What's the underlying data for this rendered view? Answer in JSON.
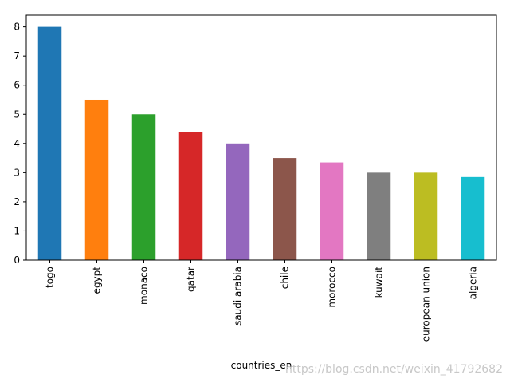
{
  "chart_data": {
    "type": "bar",
    "categories": [
      "togo",
      "egypt",
      "monaco",
      "qatar",
      "saudi arabia",
      "chile",
      "morocco",
      "kuwait",
      "european union",
      "algeria"
    ],
    "values": [
      8,
      5.5,
      5,
      4.4,
      4,
      3.5,
      3.35,
      3,
      3,
      2.85
    ],
    "colors": [
      "#1f77b4",
      "#ff7f0e",
      "#2ca02c",
      "#d62728",
      "#9467bd",
      "#8c564b",
      "#e377c2",
      "#7f7f7f",
      "#bcbd22",
      "#17becf"
    ],
    "xlabel": "countries_en",
    "ylim": [
      0,
      8.4
    ],
    "yticks": [
      0,
      1,
      2,
      3,
      4,
      5,
      6,
      7,
      8
    ],
    "watermark": "https://blog.csdn.net/weixin_41792682"
  }
}
